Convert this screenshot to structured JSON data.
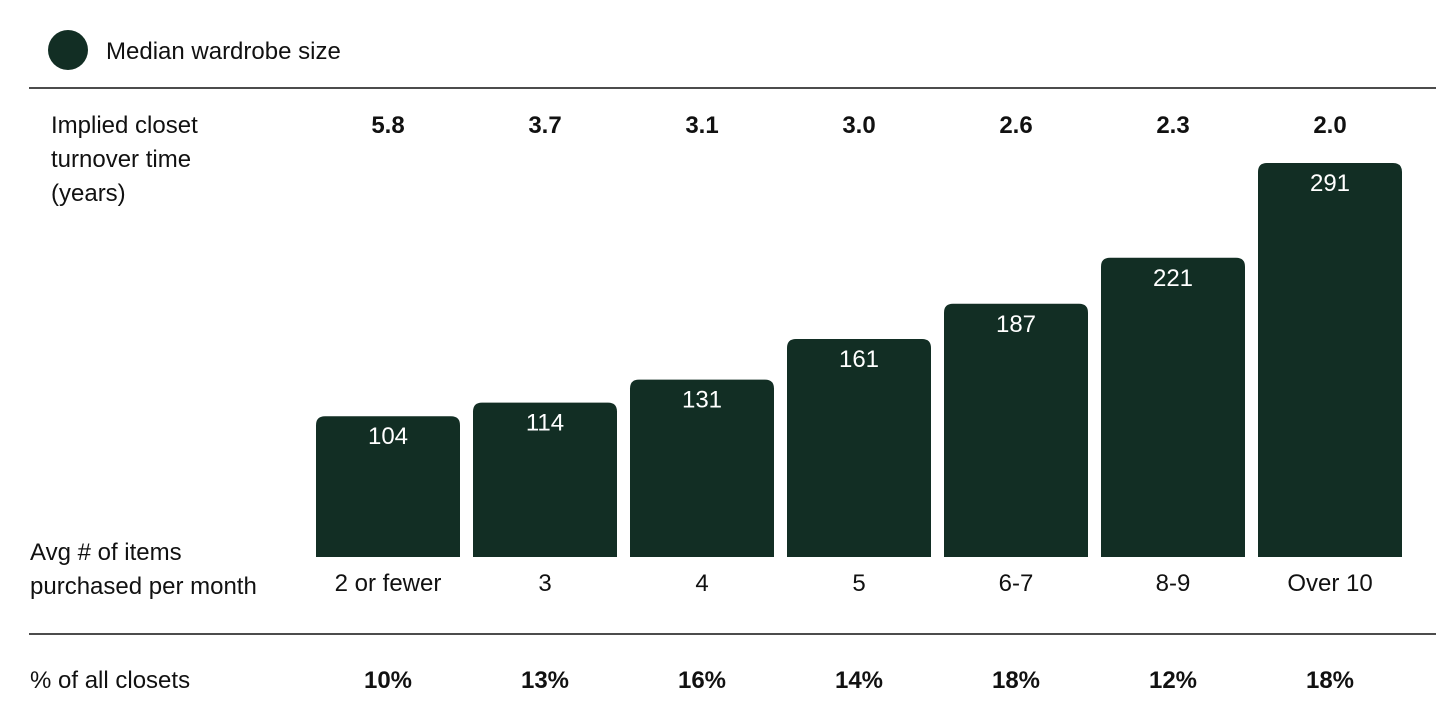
{
  "legend": {
    "label": "Median wardrobe size",
    "color": "#122e24"
  },
  "row_labels": {
    "turnover": [
      "Implied closet",
      "turnover time",
      "(years)"
    ],
    "items": [
      "Avg # of items",
      "purchased per month"
    ],
    "share": "% of all closets"
  },
  "chart_data": {
    "type": "bar",
    "categories": [
      "2 or fewer",
      "3",
      "4",
      "5",
      "6-7",
      "8-9",
      "Over 10"
    ],
    "values": [
      104,
      114,
      131,
      161,
      187,
      221,
      291
    ],
    "value_labels": [
      "104",
      "114",
      "131",
      "161",
      "187",
      "221",
      "291"
    ],
    "turnover_years": [
      "5.8",
      "3.7",
      "3.1",
      "3.0",
      "2.6",
      "2.3",
      "2.0"
    ],
    "share_of_closets": [
      "10%",
      "13%",
      "16%",
      "14%",
      "18%",
      "12%",
      "18%"
    ],
    "xlabel": "Avg # of items purchased per month",
    "ylim": [
      0,
      291
    ],
    "grid": false,
    "legend_position": "top-left",
    "bar_color": "#122e24"
  }
}
